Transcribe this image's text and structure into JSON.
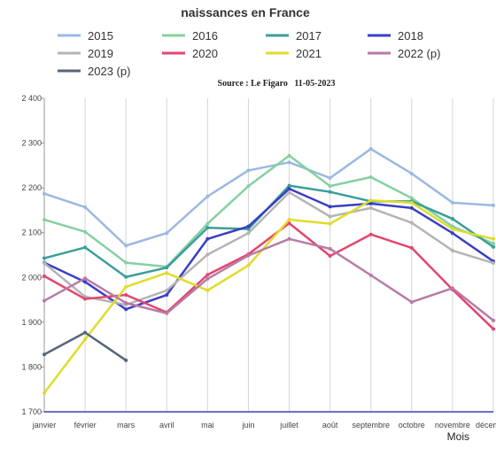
{
  "chart_data": {
    "type": "line",
    "title": "naissances en France",
    "source": "Source : Le Figaro   11-05-2023",
    "xlabel": "Mois",
    "ylabel": "",
    "categories": [
      "janvier",
      "février",
      "mars",
      "avril",
      "mai",
      "juin",
      "juillet",
      "août",
      "septembre",
      "octobre",
      "novembre",
      "décembre"
    ],
    "ylim": [
      1700,
      2400
    ],
    "yticks": [
      1700,
      1800,
      1900,
      2000,
      2100,
      2200,
      2300,
      2400
    ],
    "ytick_labels": [
      "1 700",
      "1 800",
      "1 900",
      "2 000",
      "2 100",
      "2 200",
      "2 300",
      "2 400"
    ],
    "grid": "vertical",
    "legend_position": "top",
    "series": [
      {
        "name": "2015",
        "color": "#9ab9e0",
        "values": [
          2187,
          2157,
          2071,
          2099,
          2181,
          2239,
          2257,
          2222,
          2287,
          2232,
          2167,
          2161
        ]
      },
      {
        "name": "2016",
        "color": "#86d0a0",
        "values": [
          2129,
          2102,
          2033,
          2024,
          2120,
          2204,
          2272,
          2204,
          2224,
          2177,
          2114,
          2076
        ]
      },
      {
        "name": "2017",
        "color": "#3a9e99",
        "values": [
          2043,
          2067,
          2001,
          2022,
          2111,
          2108,
          2205,
          2191,
          2170,
          2170,
          2131,
          2068
        ]
      },
      {
        "name": "2018",
        "color": "#3a3fc4",
        "values": [
          2033,
          1990,
          1929,
          1961,
          2086,
          2114,
          2198,
          2158,
          2165,
          2155,
          2099,
          2036
        ]
      },
      {
        "name": "2019",
        "color": "#b4b4b4",
        "values": [
          2032,
          1957,
          1939,
          1971,
          2051,
          2099,
          2190,
          2136,
          2155,
          2122,
          2060,
          2032
        ]
      },
      {
        "name": "2020",
        "color": "#e2466e",
        "values": [
          2003,
          1952,
          1961,
          1922,
          2006,
          2052,
          2121,
          2048,
          2096,
          2066,
          1973,
          1885
        ]
      },
      {
        "name": "2021",
        "color": "#e0dc2a",
        "values": [
          1742,
          1862,
          1979,
          2010,
          1971,
          2027,
          2129,
          2120,
          2172,
          2167,
          2108,
          2086
        ]
      },
      {
        "name": "2022 (p)",
        "color": "#b87aa6",
        "values": [
          1948,
          1998,
          1943,
          1920,
          1997,
          2049,
          2086,
          2064,
          2005,
          1945,
          1976,
          1904
        ]
      },
      {
        "name": "2023 (p)",
        "color": "#566678",
        "values": [
          1828,
          1877,
          1815,
          null,
          null,
          null,
          null,
          null,
          null,
          null,
          null,
          null
        ]
      }
    ]
  }
}
